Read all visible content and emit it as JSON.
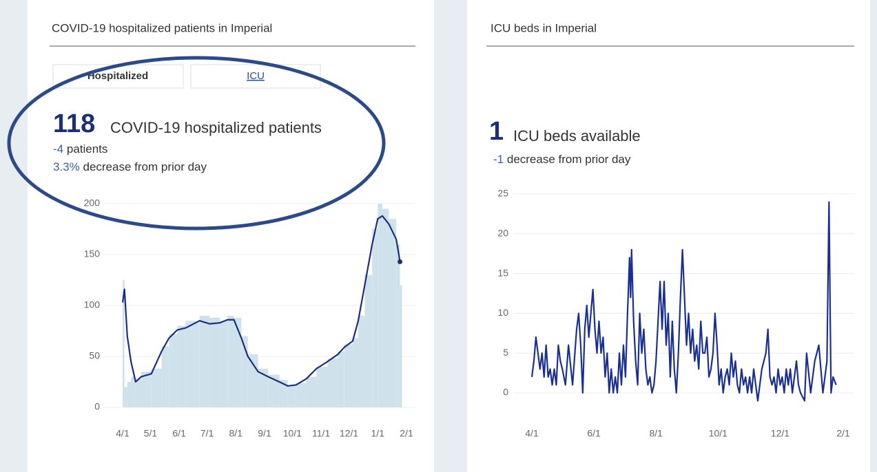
{
  "panels": [
    {
      "title": "COVID-19 hospitalized patients in Imperial",
      "tabs": [
        "Hospitalized",
        "ICU"
      ],
      "headline": {
        "value": "118",
        "label": "COVID-19 hospitalized patients"
      },
      "change": {
        "value": "-4",
        "label": "patients"
      },
      "percent": {
        "value": "3.3%",
        "label": "decrease from prior day"
      }
    },
    {
      "title": "ICU beds in Imperial",
      "headline": {
        "value": "1",
        "label": "ICU beds available"
      },
      "change": {
        "value": "-1",
        "label": "decrease from prior day"
      }
    }
  ],
  "chart_data": [
    {
      "type": "line",
      "x": [
        0,
        2,
        5,
        9,
        14,
        20,
        31,
        42,
        50,
        59,
        68,
        83,
        94,
        105,
        113,
        120,
        128,
        135,
        146,
        157,
        169,
        178,
        187,
        198,
        209,
        221,
        232,
        239,
        248,
        254,
        261,
        269,
        275,
        280,
        287,
        295,
        299
      ],
      "series": [
        {
          "color": "#1a2f7a",
          "values": [
            103,
            116,
            70,
            45,
            25,
            30,
            33,
            55,
            68,
            76,
            78,
            85,
            82,
            83,
            86,
            86,
            68,
            50,
            35,
            30,
            25,
            21,
            22,
            28,
            38,
            45,
            52,
            59,
            65,
            85,
            120,
            160,
            185,
            188,
            180,
            165,
            143
          ]
        },
        {
          "type": "bar",
          "color": "#cfe2ec",
          "values": [
            125,
            20,
            25,
            30,
            28,
            35,
            38,
            60,
            72,
            80,
            85,
            90,
            88,
            85,
            90,
            88,
            70,
            52,
            38,
            32,
            27,
            22,
            24,
            30,
            40,
            48,
            55,
            62,
            68,
            90,
            130,
            175,
            200,
            195,
            185,
            160,
            120
          ]
        }
      ],
      "xlim": [
        0,
        306
      ],
      "xticks": [
        {
          "value": 0,
          "label": "4/1"
        },
        {
          "value": 30,
          "label": "5/1"
        },
        {
          "value": 61,
          "label": "6/1"
        },
        {
          "value": 91,
          "label": "7/1"
        },
        {
          "value": 122,
          "label": "8/1"
        },
        {
          "value": 153,
          "label": "9/1"
        },
        {
          "value": 183,
          "label": "10/1"
        },
        {
          "value": 214,
          "label": "11/1"
        },
        {
          "value": 244,
          "label": "12/1"
        },
        {
          "value": 275,
          "label": "1/1"
        },
        {
          "value": 306,
          "label": "2/1"
        }
      ],
      "ylim": [
        -8,
        205
      ],
      "yticks": [
        0,
        50,
        100,
        150,
        200
      ],
      "grid": true
    },
    {
      "type": "line",
      "x": [
        0,
        2,
        4,
        6,
        8,
        10,
        12,
        14,
        16,
        18,
        20,
        22,
        24,
        26,
        28,
        30,
        33,
        36,
        40,
        44,
        46,
        48,
        50,
        52,
        54,
        56,
        58,
        60,
        62,
        64,
        66,
        68,
        70,
        72,
        74,
        76,
        78,
        80,
        82,
        84,
        86,
        88,
        90,
        92,
        94,
        96,
        97,
        98,
        100,
        102,
        104,
        106,
        108,
        110,
        112,
        114,
        116,
        118,
        120,
        122,
        124,
        126,
        128,
        130,
        132,
        134,
        136,
        138,
        140,
        142,
        144,
        146,
        148,
        150,
        152,
        154,
        156,
        158,
        160,
        162,
        164,
        166,
        168,
        170,
        172,
        174,
        176,
        178,
        180,
        182,
        184,
        186,
        188,
        190,
        192,
        194,
        196,
        198,
        200,
        202,
        204,
        206,
        208,
        210,
        212,
        214,
        216,
        218,
        220,
        222,
        226,
        230,
        232,
        234,
        236,
        238,
        240,
        242,
        244,
        246,
        248,
        250,
        252,
        254,
        256,
        258,
        260,
        262,
        264,
        268,
        270,
        274,
        278,
        282,
        286,
        290,
        292,
        294,
        296,
        299
      ],
      "series": [
        {
          "color": "#1a2f8f",
          "values": [
            2,
            4,
            7,
            5,
            3,
            5,
            2,
            6,
            2,
            3,
            1,
            3,
            1,
            6,
            4,
            3,
            1,
            6,
            1,
            8,
            10,
            6,
            0,
            8,
            11,
            7,
            10,
            13,
            8,
            5,
            9,
            5,
            7,
            2,
            5,
            0,
            3,
            0,
            2,
            0,
            5,
            1,
            6,
            2,
            10,
            17,
            12,
            18,
            9,
            4,
            1,
            10,
            5,
            8,
            3,
            1,
            2,
            0,
            1,
            4,
            9,
            14,
            8,
            14,
            6,
            10,
            2,
            9,
            3,
            0,
            5,
            12,
            18,
            12,
            6,
            10,
            5,
            8,
            4,
            6,
            3,
            9,
            5,
            5,
            7,
            2,
            3,
            5,
            10,
            6,
            1,
            3,
            0,
            2,
            3,
            1,
            5,
            2,
            4,
            1,
            0,
            3,
            1,
            2,
            0,
            2,
            0,
            3,
            1,
            -1,
            3,
            5,
            8,
            2,
            1,
            2,
            0,
            3,
            1,
            2,
            0,
            3,
            1,
            3,
            0,
            2,
            4,
            1,
            0,
            -1,
            5,
            0,
            4,
            6,
            0,
            4,
            24,
            0,
            2,
            1
          ]
        }
      ],
      "xlim": [
        0,
        306
      ],
      "xticks": [
        {
          "value": 0,
          "label": "4/1"
        },
        {
          "value": 61,
          "label": "6/1"
        },
        {
          "value": 122,
          "label": "8/1"
        },
        {
          "value": 183,
          "label": "10/1"
        },
        {
          "value": 244,
          "label": "12/1"
        },
        {
          "value": 306,
          "label": "2/1"
        }
      ],
      "ylim": [
        -3,
        26
      ],
      "yticks": [
        0,
        5,
        10,
        15,
        20,
        25
      ],
      "grid": true
    }
  ]
}
